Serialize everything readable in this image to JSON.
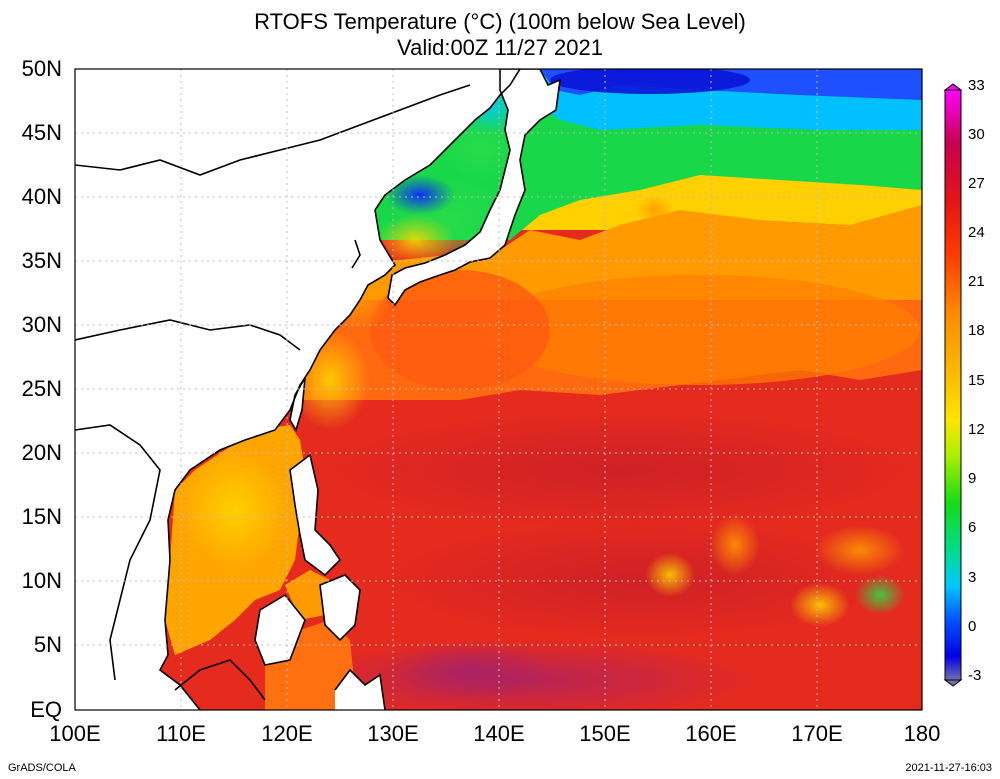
{
  "title": {
    "line1": "RTOFS Temperature (°C) (100m below Sea Level)",
    "line2": "Valid:00Z 11/27 2021"
  },
  "axes": {
    "lat_labels": [
      "50N",
      "45N",
      "40N",
      "35N",
      "30N",
      "25N",
      "20N",
      "15N",
      "10N",
      "5N",
      "EQ"
    ],
    "lon_labels": [
      "100E",
      "110E",
      "120E",
      "130E",
      "140E",
      "150E",
      "160E",
      "170E",
      "180"
    ],
    "lat_range": [
      0,
      50
    ],
    "lon_range": [
      100,
      180
    ]
  },
  "colorbar": {
    "labels": [
      "33",
      "30",
      "27",
      "24",
      "21",
      "18",
      "15",
      "12",
      "9",
      "6",
      "3",
      "0",
      "-3"
    ],
    "colors": [
      "#ff00ff",
      "#c80050",
      "#e61414",
      "#ff3c00",
      "#ff8c00",
      "#ffb400",
      "#ffe600",
      "#aaf000",
      "#14dc14",
      "#00dc8c",
      "#00c8ff",
      "#0050ff",
      "#0000e6",
      "#7070b0"
    ]
  },
  "footer": {
    "left": "GrADS/COLA",
    "right": "2021-11-27-16:03"
  }
}
